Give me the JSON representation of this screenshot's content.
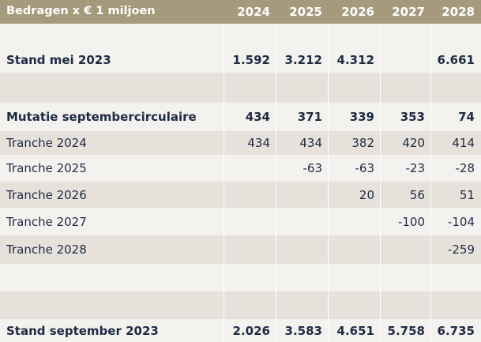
{
  "table": {
    "header_label": "Bedragen x € 1 miljoen",
    "years": [
      "2024",
      "2025",
      "2026",
      "2027",
      "2028"
    ],
    "rows": [
      {
        "label": "",
        "values": [
          "",
          "",
          "",
          "",
          ""
        ],
        "bold": false,
        "shade": "light"
      },
      {
        "label": "Stand mei 2023",
        "values": [
          "1.592",
          "3.212",
          "4.312",
          "",
          "6.661"
        ],
        "bold": true,
        "shade": "light"
      },
      {
        "label": "",
        "values": [
          "",
          "",
          "",
          "",
          ""
        ],
        "bold": false,
        "shade": "grey"
      },
      {
        "label": "Mutatie septembercirculaire",
        "values": [
          "434",
          "371",
          "339",
          "353",
          "74"
        ],
        "bold": true,
        "shade": "light"
      },
      {
        "label": "Tranche 2024",
        "values": [
          "434",
          "434",
          "382",
          "420",
          "414"
        ],
        "bold": false,
        "shade": "grey"
      },
      {
        "label": "Tranche 2025",
        "values": [
          "",
          "-63",
          "-63",
          "-23",
          "-28"
        ],
        "bold": false,
        "shade": "light"
      },
      {
        "label": "Tranche 2026",
        "values": [
          "",
          "",
          "20",
          "56",
          "51"
        ],
        "bold": false,
        "shade": "grey"
      },
      {
        "label": "Tranche 2027",
        "values": [
          "",
          "",
          "",
          "-100",
          "-104"
        ],
        "bold": false,
        "shade": "light"
      },
      {
        "label": "Tranche 2028",
        "values": [
          "",
          "",
          "",
          "",
          "-259"
        ],
        "bold": false,
        "shade": "grey"
      },
      {
        "label": "",
        "values": [
          "",
          "",
          "",
          "",
          ""
        ],
        "bold": false,
        "shade": "light"
      },
      {
        "label": "",
        "values": [
          "",
          "",
          "",
          "",
          ""
        ],
        "bold": false,
        "shade": "grey"
      },
      {
        "label": "Stand september 2023",
        "values": [
          "2.026",
          "3.583",
          "4.651",
          "5.758",
          "6.735"
        ],
        "bold": true,
        "shade": "light"
      }
    ]
  }
}
